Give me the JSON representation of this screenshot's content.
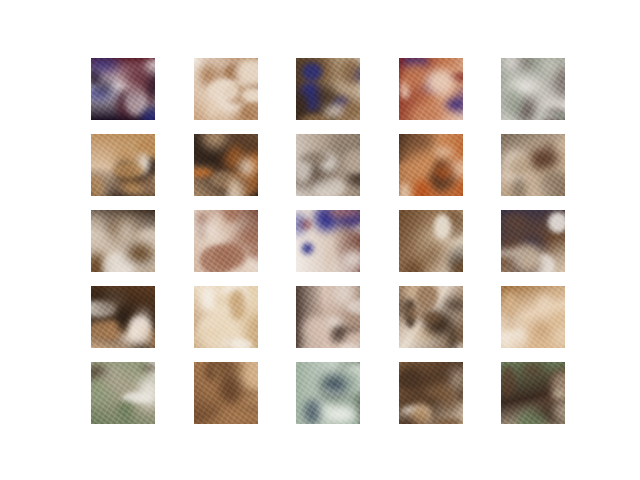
{
  "figure": {
    "background": "#ffffff",
    "grid": {
      "rows": 5,
      "cols": 5
    },
    "tiles": [
      {
        "palette": [
          "#1a0f22",
          "#c8402e",
          "#2a2f8a",
          "#f0e8ea",
          "#5a1f2a"
        ]
      },
      {
        "palette": [
          "#c9a27e",
          "#e8d8c6",
          "#8a5a38",
          "#f2e9e0",
          "#a27046"
        ]
      },
      {
        "palette": [
          "#3a2a1e",
          "#f0ece6",
          "#2c2f7a",
          "#8a6a48",
          "#d8cab8"
        ]
      },
      {
        "palette": [
          "#7a1e1a",
          "#f3eee9",
          "#3b2a7a",
          "#c27a54",
          "#e7c9b5"
        ]
      },
      {
        "palette": [
          "#8e9a8a",
          "#cfd3c8",
          "#5a4a48",
          "#b9b7ae",
          "#f0ece8"
        ]
      },
      {
        "palette": [
          "#b98b58",
          "#f3efe9",
          "#6b4a30",
          "#d9bda0",
          "#3a2a20"
        ]
      },
      {
        "palette": [
          "#6a4a32",
          "#c8722f",
          "#e9dccb",
          "#2f221a",
          "#a98a6a"
        ]
      },
      {
        "palette": [
          "#8a7a6a",
          "#ebe6e0",
          "#4a3a30",
          "#b5a493",
          "#d7d0c8"
        ]
      },
      {
        "palette": [
          "#b5531f",
          "#f0dfc9",
          "#6f3a1e",
          "#c98a5a",
          "#4a3020"
        ]
      },
      {
        "palette": [
          "#a58a6a",
          "#f0e6de",
          "#5a3a2a",
          "#c8b29a",
          "#7a6a5a"
        ]
      },
      {
        "palette": [
          "#b9a48a",
          "#f0ece8",
          "#6a4a2a",
          "#d8cbbd",
          "#3a2a1e"
        ]
      },
      {
        "palette": [
          "#d3b8a4",
          "#f3ece6",
          "#a2705a",
          "#e6d6c8",
          "#7a4a3a"
        ]
      },
      {
        "palette": [
          "#f1ebe6",
          "#2e2f8a",
          "#b87a6a",
          "#d8c6b8",
          "#6a3a2e"
        ]
      },
      {
        "palette": [
          "#6a4a2e",
          "#c9b49a",
          "#2e2218",
          "#a08060",
          "#e6dccd"
        ]
      },
      {
        "palette": [
          "#2a2a4a",
          "#b59a7a",
          "#f0ece8",
          "#6a4a32",
          "#d6c4ae"
        ]
      },
      {
        "palette": [
          "#5a3a22",
          "#a57a52",
          "#f0e6dc",
          "#2e2016",
          "#c8a888"
        ]
      },
      {
        "palette": [
          "#e4cfae",
          "#f4ede4",
          "#c29c6a",
          "#ecdcc4",
          "#b08458"
        ]
      },
      {
        "palette": [
          "#a58a78",
          "#f0e8e2",
          "#6a4a3a",
          "#d8c2b4",
          "#4a3a32"
        ]
      },
      {
        "palette": [
          "#6a4e36",
          "#c9ae8e",
          "#3a2a1e",
          "#e7dccf",
          "#96765a"
        ]
      },
      {
        "palette": [
          "#d7b48a",
          "#f2e8dc",
          "#b8895a",
          "#e8d2b8",
          "#a0703e"
        ]
      },
      {
        "palette": [
          "#6f7f5e",
          "#e9e6df",
          "#4a3a2a",
          "#a8a08a",
          "#8f9a7a"
        ]
      },
      {
        "palette": [
          "#8a6240",
          "#b98e60",
          "#5a3a24",
          "#a67a52",
          "#d2b08a"
        ]
      },
      {
        "palette": [
          "#9eb0a0",
          "#e9eee6",
          "#3a4a5a",
          "#c4cfc4",
          "#6a7a6a"
        ]
      },
      {
        "palette": [
          "#7a5a3e",
          "#f2ede6",
          "#b08a62",
          "#4a3424",
          "#d9c6b0"
        ]
      },
      {
        "palette": [
          "#6a7a5a",
          "#5a3a2a",
          "#a08a6a",
          "#3a2a20",
          "#c8b8a0"
        ]
      }
    ]
  }
}
